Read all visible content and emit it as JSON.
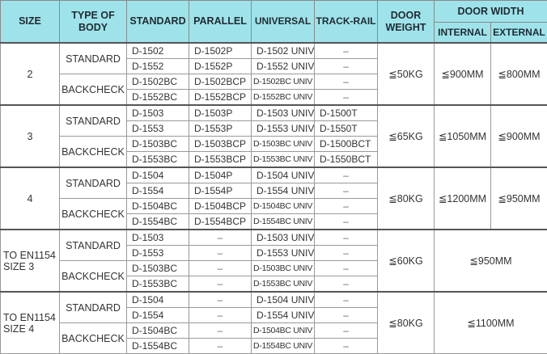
{
  "headers": {
    "size": "SIZE",
    "type_of_body": "TYPE OF BODY",
    "standard": "STANDARD",
    "parallel": "PARALLEL",
    "universal": "UNIVERSAL",
    "track_rail": "TRACK-RAIL",
    "door_weight": "DOOR WEIGHT",
    "door_width": "DOOR WIDTH",
    "internal": "INTERNAL",
    "external": "EXTERNAL"
  },
  "groups": [
    {
      "size": "2",
      "weight": "≦50KG",
      "internal": "≦900MM",
      "external": "≦800MM",
      "bodies": [
        {
          "type": "STANDARD",
          "rows": [
            [
              "D-1502",
              "D-1502P",
              "D-1502 UNIV",
              "–"
            ],
            [
              "D-1552",
              "D-1552P",
              "D-1552 UNIV",
              "–"
            ]
          ]
        },
        {
          "type": "BACKCHECK",
          "rows": [
            [
              "D-1502BC",
              "D-1502BCP",
              "D-1502BC UNIV",
              "–"
            ],
            [
              "D-1552BC",
              "D-1552BCP",
              "D-1552BC UNIV",
              "–"
            ]
          ]
        }
      ]
    },
    {
      "size": "3",
      "weight": "≦65KG",
      "internal": "≦1050MM",
      "external": "≦900MM",
      "bodies": [
        {
          "type": "STANDARD",
          "rows": [
            [
              "D-1503",
              "D-1503P",
              "D-1503 UNIV",
              "D-1500T"
            ],
            [
              "D-1553",
              "D-1553P",
              "D-1553 UNIV",
              "D-1550T"
            ]
          ]
        },
        {
          "type": "BACKCHECK",
          "rows": [
            [
              "D-1503BC",
              "D-1503BCP",
              "D-1503BC UNIV",
              "D-1500BCT"
            ],
            [
              "D-1553BC",
              "D-1553BCP",
              "D-1553BC UNIV",
              "D-1550BCT"
            ]
          ]
        }
      ]
    },
    {
      "size": "4",
      "weight": "≦80KG",
      "internal": "≦1200MM",
      "external": "≦950MM",
      "bodies": [
        {
          "type": "STANDARD",
          "rows": [
            [
              "D-1504",
              "D-1504P",
              "D-1504 UNIV",
              "–"
            ],
            [
              "D-1554",
              "D-1554P",
              "D-1554 UNIV",
              "–"
            ]
          ]
        },
        {
          "type": "BACKCHECK",
          "rows": [
            [
              "D-1504BC",
              "D-1504BCP",
              "D-1504BC UNIV",
              "–"
            ],
            [
              "D-1554BC",
              "D-1554BCP",
              "D-1554BC UNIV",
              "–"
            ]
          ]
        }
      ]
    },
    {
      "size": "TO EN1154 SIZE 3",
      "weight": "≦60KG",
      "width": "≦950MM",
      "bodies": [
        {
          "type": "STANDARD",
          "rows": [
            [
              "D-1503",
              "–",
              "D-1503 UNIV",
              "–"
            ],
            [
              "D-1553",
              "–",
              "D-1553 UNIV",
              "–"
            ]
          ]
        },
        {
          "type": "BACKCHECK",
          "rows": [
            [
              "D-1503BC",
              "–",
              "D-1503BC UNIV",
              "–"
            ],
            [
              "D-1553BC",
              "–",
              "D-1553BC UNIV",
              "–"
            ]
          ]
        }
      ]
    },
    {
      "size": "TO EN1154 SIZE 4",
      "weight": "≦80KG",
      "width": "≦1100MM",
      "bodies": [
        {
          "type": "STANDARD",
          "rows": [
            [
              "D-1504",
              "–",
              "D-1504 UNIV",
              "–"
            ],
            [
              "D-1554",
              "–",
              "D-1554 UNIV",
              "–"
            ]
          ]
        },
        {
          "type": "BACKCHECK",
          "rows": [
            [
              "D-1504BC",
              "–",
              "D-1504BC UNIV",
              "–"
            ],
            [
              "D-1554BC",
              "–",
              "D-1554BC UNIV",
              "–"
            ]
          ]
        }
      ]
    }
  ]
}
